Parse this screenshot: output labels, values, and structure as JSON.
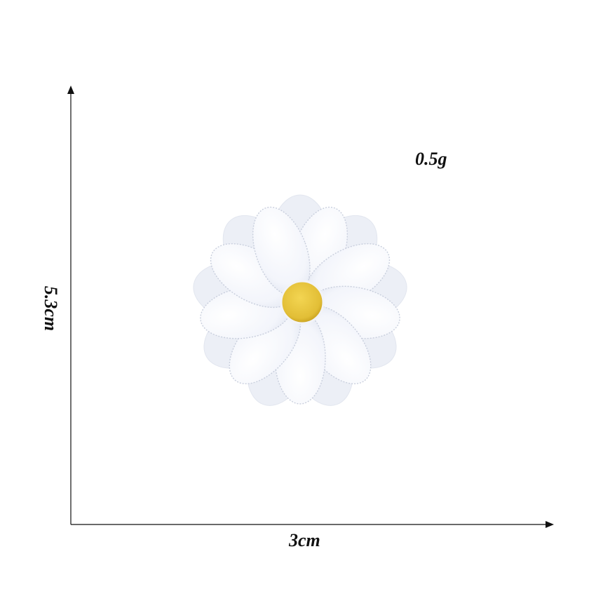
{
  "measurements": {
    "weight": "0.5g",
    "width": "3cm",
    "height": "5.3cm"
  },
  "colors": {
    "background": "#ffffff",
    "axis": "#111111",
    "patch_edge": "#eef1f7",
    "petal": "#f7f8fc",
    "petal_shadow": "#dfe3ee",
    "stitch": "#c9cfdd",
    "center": "#e7c640",
    "center_dark": "#c9a21f"
  },
  "icons": {
    "product": "daisy-patch-icon",
    "axis_arrow": "arrow-head-icon"
  }
}
